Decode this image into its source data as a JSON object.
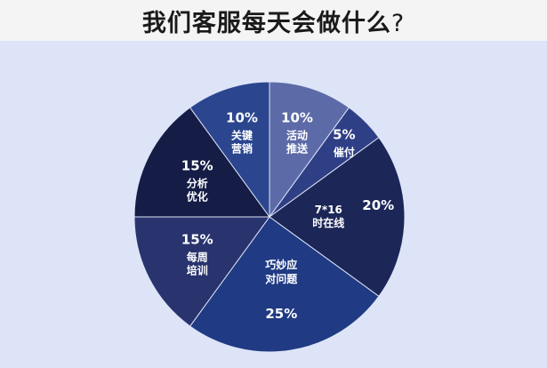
{
  "title": "我们客服每天会做什么",
  "title_suffix": "?",
  "chart_data": {
    "type": "pie",
    "title": "我们客服每天会做什么?",
    "slices": [
      {
        "label": [
          "活动",
          "推送"
        ],
        "value": 10,
        "value_text": "10%",
        "color": "#5c6ba8"
      },
      {
        "label": [
          "催付"
        ],
        "value": 5,
        "value_text": "5%",
        "color": "#2f3f86"
      },
      {
        "label": [
          "7*16",
          "时在线"
        ],
        "value": 20,
        "value_text": "20%",
        "color": "#1c2758"
      },
      {
        "label": [
          "巧妙应",
          "对问题"
        ],
        "value": 25,
        "value_text": "25%",
        "color": "#203a83"
      },
      {
        "label": [
          "每周",
          "培训"
        ],
        "value": 15,
        "value_text": "15%",
        "color": "#29346e"
      },
      {
        "label": [
          "分析",
          "优化"
        ],
        "value": 15,
        "value_text": "15%",
        "color": "#151d46"
      },
      {
        "label": [
          "关键",
          "营销"
        ],
        "value": 10,
        "value_text": "10%",
        "color": "#2b468f"
      }
    ]
  }
}
